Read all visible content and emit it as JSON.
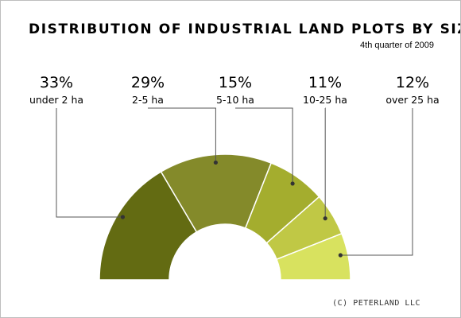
{
  "chart_data": {
    "type": "pie",
    "subtype": "semi-donut",
    "title": "DISTRIBUTION OF INDUSTRIAL LAND PLOTS BY SIZE",
    "subtitle": "4th quarter of 2009",
    "categories": [
      "under 2 ha",
      "2-5 ha",
      "5-10 ha",
      "10-25 ha",
      "over 25 ha"
    ],
    "values": [
      33,
      29,
      15,
      11,
      12
    ],
    "value_labels": [
      "33%",
      "29%",
      "15%",
      "11%",
      "12%"
    ],
    "unit": "%",
    "colors": [
      "#636b12",
      "#848a2a",
      "#a4ad2e",
      "#c0c845",
      "#d8e25f"
    ],
    "legend": "none",
    "grid": false
  },
  "footer": {
    "copyright": "(C) PETERLAND LLC"
  }
}
